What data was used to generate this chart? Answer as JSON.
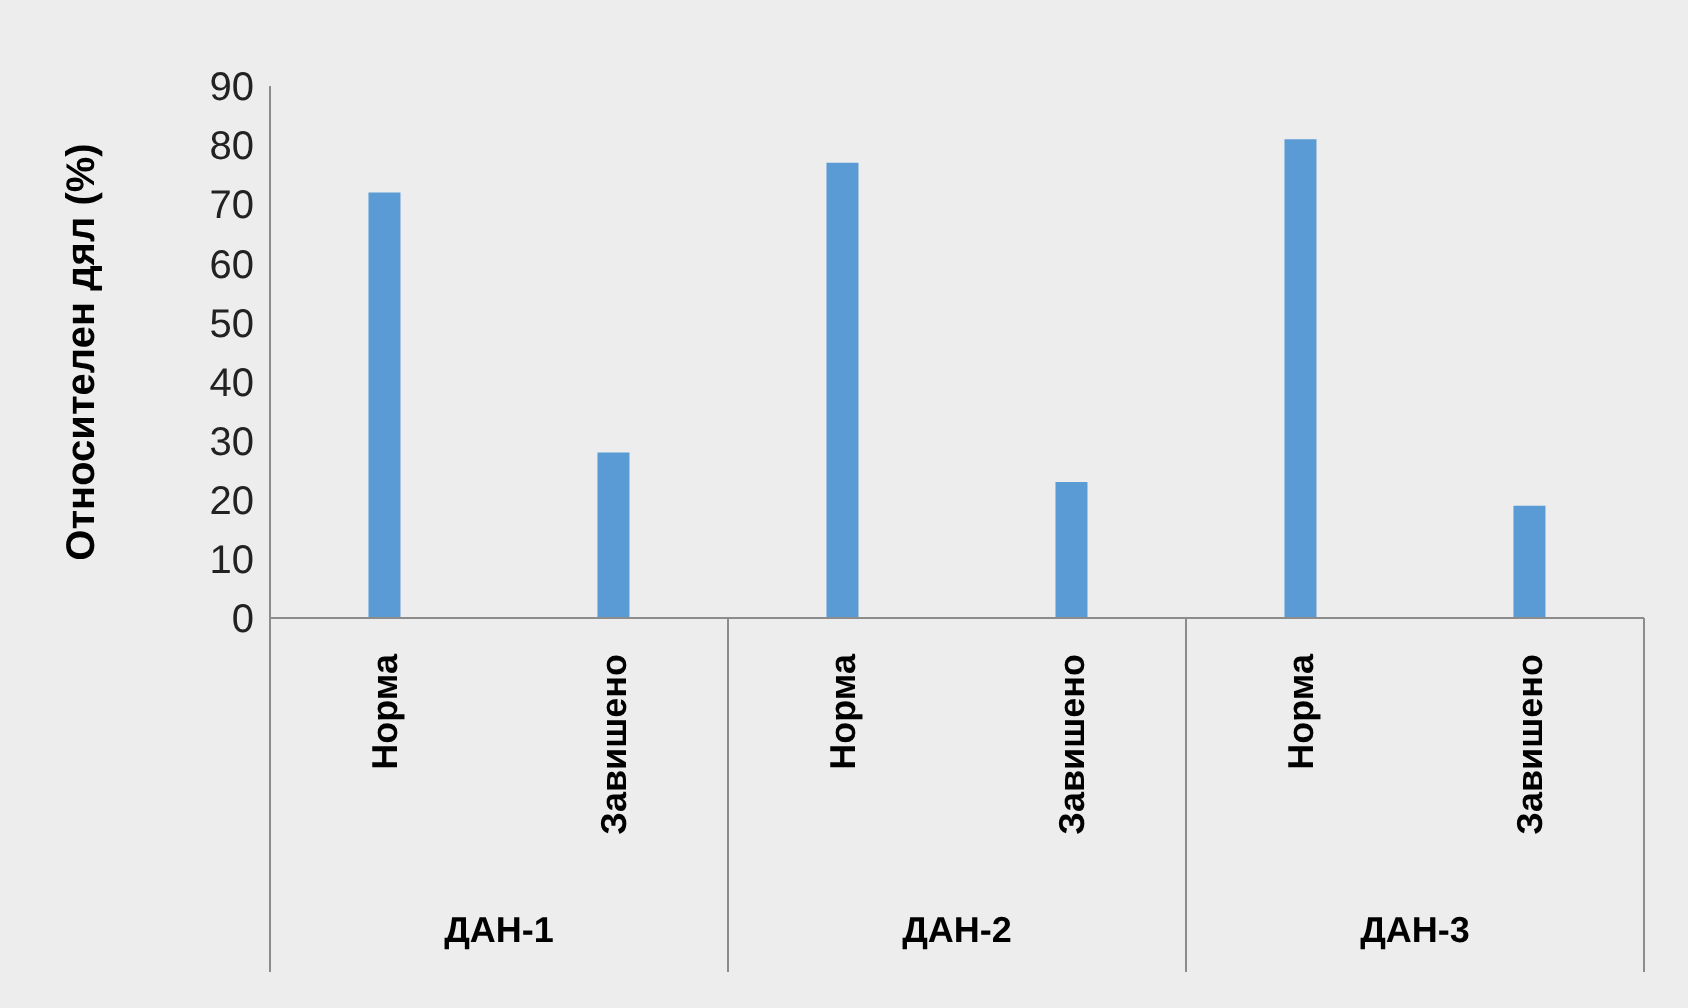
{
  "chart_data": {
    "type": "bar",
    "ylabel": "Относителен дял (%)",
    "categories": [
      "Норма",
      "Завишено",
      "Норма",
      "Завишено",
      "Норма",
      "Завишено"
    ],
    "annotations": [
      "ДАН-1",
      "ДАН-2",
      "ДАН-3"
    ],
    "values": [
      72,
      28,
      77,
      23,
      81,
      19
    ],
    "color": "#5b9bd5",
    "ylim": [
      0,
      90
    ],
    "yticks": [
      0,
      10,
      20,
      30,
      40,
      50,
      60,
      70,
      80,
      90
    ],
    "grid": false,
    "legend": false
  }
}
